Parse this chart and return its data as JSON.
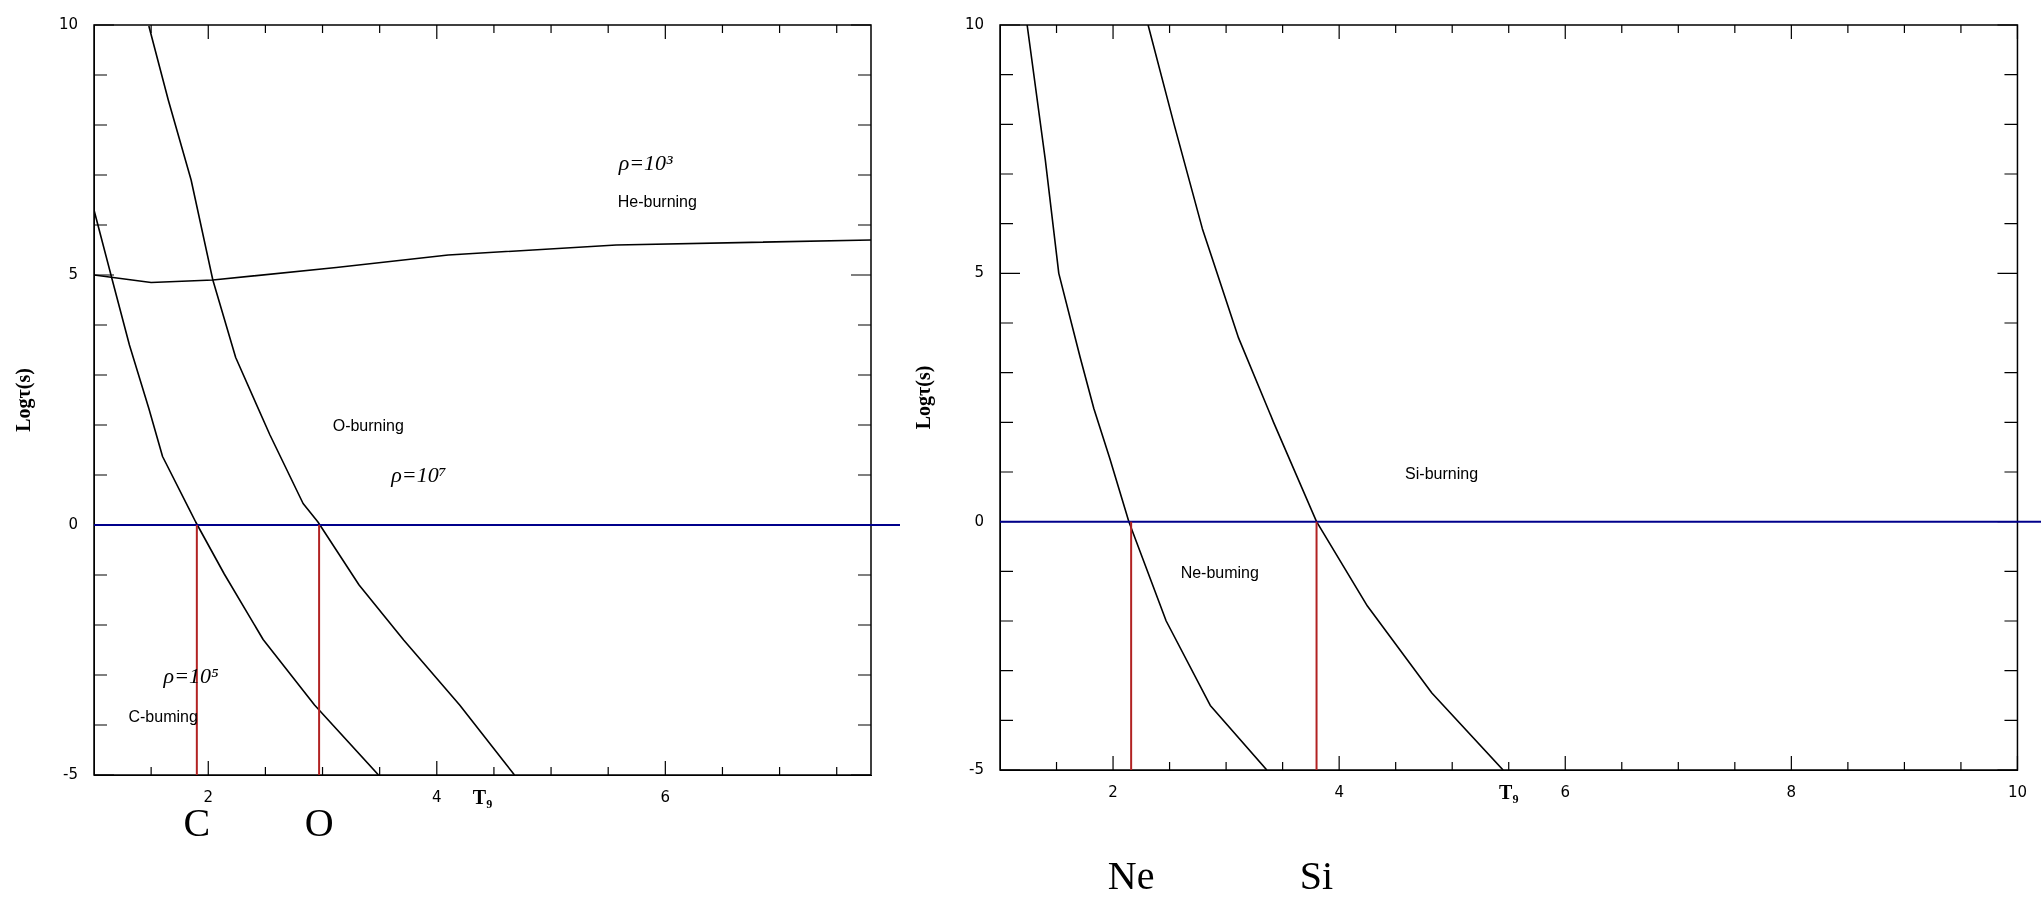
{
  "chart_data": [
    {
      "type": "line",
      "xlabel": "T₉",
      "ylabel": "Logτ(s)",
      "xlim": [
        1,
        7.8
      ],
      "ylim": [
        -5,
        10
      ],
      "xticks": [
        {
          "value": 1.5,
          "label": null
        },
        2,
        {
          "value": 2.5,
          "label": null
        },
        {
          "value": 3,
          "label": null
        },
        {
          "value": 3.5,
          "label": null
        },
        4,
        {
          "value": 4.5,
          "label": null
        },
        {
          "value": 5,
          "label": null
        },
        {
          "value": 5.5,
          "label": null
        },
        6,
        {
          "value": 6.5,
          "label": null
        },
        {
          "value": 7,
          "label": null
        },
        {
          "value": 7.5,
          "label": null
        }
      ],
      "yticks": [
        -5,
        {
          "value": -4,
          "label": null
        },
        {
          "value": -3,
          "label": null
        },
        {
          "value": -2,
          "label": null
        },
        {
          "value": -1,
          "label": null
        },
        0,
        {
          "value": 1,
          "label": null
        },
        {
          "value": 2,
          "label": null
        },
        {
          "value": 3,
          "label": null
        },
        {
          "value": 4,
          "label": null
        },
        5,
        {
          "value": 6,
          "label": null
        },
        {
          "value": 7,
          "label": null
        },
        {
          "value": 8,
          "label": null
        },
        {
          "value": 9,
          "label": null
        },
        10
      ],
      "series": [
        {
          "color": "#000000",
          "x": [
            1.0,
            1.16,
            1.31,
            1.48,
            1.6,
            1.89,
            2.14,
            2.48,
            2.93,
            3.49
          ],
          "values": [
            6.3,
            4.9,
            3.6,
            2.33,
            1.37,
            0.06,
            -0.98,
            -2.29,
            -3.6,
            -5.0
          ]
        },
        {
          "color": "#000000",
          "x": [
            1.48,
            1.65,
            1.85,
            2.04,
            2.24,
            2.54,
            2.83,
            2.96,
            3.32,
            3.71,
            4.2,
            4.68
          ],
          "values": [
            9.98,
            8.5,
            6.9,
            4.9,
            3.35,
            1.8,
            0.43,
            0.06,
            -1.2,
            -2.3,
            -3.6,
            -5.0
          ]
        },
        {
          "color": "#000000",
          "x": [
            1.0,
            1.5,
            2.04,
            3.12,
            4.1,
            5.57,
            7.8
          ],
          "values": [
            5.0,
            4.85,
            4.9,
            5.15,
            5.4,
            5.6,
            5.7
          ]
        }
      ],
      "ref_lines": [
        {
          "axis": "y",
          "value": 0,
          "color": "#00008b"
        },
        {
          "axis": "x",
          "value": 1.9,
          "label": "C",
          "color": "#b22222"
        },
        {
          "axis": "x",
          "value": 2.97,
          "label": "O",
          "color": "#b22222"
        }
      ],
      "annotations": [
        "ρ=10³",
        "He-burning",
        "O-burning",
        "ρ=10⁷",
        "ρ=10⁵",
        "C-buming"
      ]
    },
    {
      "type": "line",
      "xlabel": "T₉",
      "ylabel": "Logτ(s)",
      "xlim": [
        1,
        10
      ],
      "ylim": [
        -5,
        10
      ],
      "xticks": [
        {
          "value": 1.5,
          "label": null
        },
        2,
        {
          "value": 2.5,
          "label": null
        },
        {
          "value": 3,
          "label": null
        },
        {
          "value": 3.5,
          "label": null
        },
        4,
        {
          "value": 4.5,
          "label": null
        },
        {
          "value": 5,
          "label": null
        },
        {
          "value": 5.5,
          "label": null
        },
        6,
        {
          "value": 6.5,
          "label": null
        },
        {
          "value": 7,
          "label": null
        },
        {
          "value": 7.5,
          "label": null
        },
        8,
        {
          "value": 8.5,
          "label": null
        },
        {
          "value": 9,
          "label": null
        },
        {
          "value": 9.5,
          "label": null
        },
        10
      ],
      "yticks": [
        -5,
        {
          "value": -4,
          "label": null
        },
        {
          "value": -3,
          "label": null
        },
        {
          "value": -2,
          "label": null
        },
        {
          "value": -1,
          "label": null
        },
        0,
        {
          "value": 1,
          "label": null
        },
        {
          "value": 2,
          "label": null
        },
        {
          "value": 3,
          "label": null
        },
        {
          "value": 4,
          "label": null
        },
        5,
        {
          "value": 6,
          "label": null
        },
        {
          "value": 7,
          "label": null
        },
        {
          "value": 8,
          "label": null
        },
        {
          "value": 9,
          "label": null
        },
        10
      ],
      "series": [
        {
          "color": "#000000",
          "x": [
            1.24,
            1.4,
            1.52,
            1.71,
            1.83,
            1.97,
            2.14,
            2.47,
            2.86,
            3.36
          ],
          "values": [
            10.0,
            7.3,
            5.0,
            3.3,
            2.28,
            1.28,
            0.0,
            -2.0,
            -3.7,
            -5.0
          ]
        },
        {
          "color": "#000000",
          "x": [
            2.31,
            2.54,
            2.79,
            3.11,
            3.42,
            3.8,
            4.25,
            4.82,
            5.45
          ],
          "values": [
            10.0,
            8.0,
            5.9,
            3.7,
            2.0,
            0.0,
            -1.7,
            -3.45,
            -5.0
          ]
        }
      ],
      "ref_lines": [
        {
          "axis": "y",
          "value": 0,
          "color": "#00008b"
        },
        {
          "axis": "x",
          "value": 2.16,
          "label": "Ne",
          "color": "#b22222"
        },
        {
          "axis": "x",
          "value": 3.8,
          "label": "Si",
          "color": "#b22222"
        }
      ],
      "annotations": [
        "Si-burning",
        "Ne-buming"
      ]
    }
  ]
}
